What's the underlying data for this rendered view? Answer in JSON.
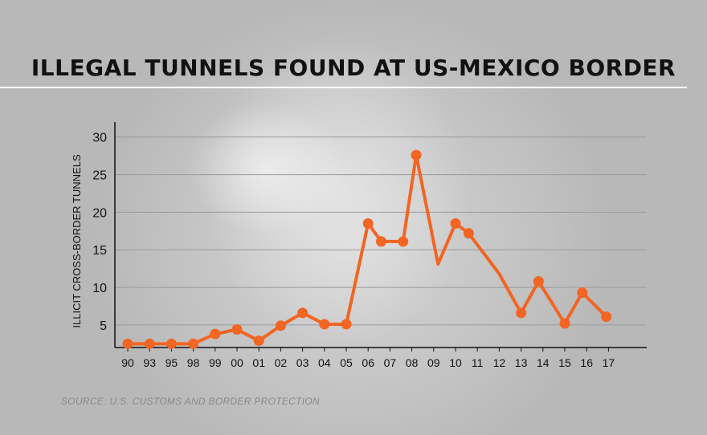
{
  "chart_data": {
    "type": "line",
    "title": "ILLEGAL TUNNELS FOUND AT US-MEXICO BORDER",
    "ylabel": "ILLICIT CROSS-BORDER TUNNELS",
    "source": "SOURCE: U.S. CUSTOMS AND BORDER PROTECTION",
    "ylim": [
      2,
      32
    ],
    "yticks": [
      5,
      10,
      15,
      20,
      25,
      30
    ],
    "grid": true,
    "xticks": [
      "90",
      "93",
      "95",
      "98",
      "99",
      "00",
      "01",
      "02",
      "03",
      "04",
      "05",
      "06",
      "07",
      "08",
      "09",
      "10",
      "11",
      "12",
      "13",
      "14",
      "15",
      "16",
      "17"
    ],
    "line_color": "#f26522",
    "points": [
      {
        "x": 0,
        "y": 2.5,
        "marker": true
      },
      {
        "x": 1,
        "y": 2.5,
        "marker": true
      },
      {
        "x": 2,
        "y": 2.5,
        "marker": true
      },
      {
        "x": 3,
        "y": 2.5,
        "marker": true
      },
      {
        "x": 4,
        "y": 3.8,
        "marker": true
      },
      {
        "x": 5,
        "y": 4.4,
        "marker": true
      },
      {
        "x": 6,
        "y": 2.9,
        "marker": true
      },
      {
        "x": 7,
        "y": 4.9,
        "marker": true
      },
      {
        "x": 8,
        "y": 6.6,
        "marker": true
      },
      {
        "x": 9,
        "y": 5.1,
        "marker": true
      },
      {
        "x": 10,
        "y": 5.1,
        "marker": true
      },
      {
        "x": 11,
        "y": 18.5,
        "marker": true
      },
      {
        "x": 11.6,
        "y": 16.1,
        "marker": true
      },
      {
        "x": 12.6,
        "y": 16.1,
        "marker": true
      },
      {
        "x": 13.2,
        "y": 27.6,
        "marker": true
      },
      {
        "x": 14.2,
        "y": 13.1,
        "marker": false
      },
      {
        "x": 15,
        "y": 18.5,
        "marker": true
      },
      {
        "x": 15.6,
        "y": 17.2,
        "marker": true
      },
      {
        "x": 17,
        "y": 11.8,
        "marker": false
      },
      {
        "x": 18,
        "y": 6.6,
        "marker": true
      },
      {
        "x": 18.8,
        "y": 10.8,
        "marker": true
      },
      {
        "x": 20,
        "y": 5.2,
        "marker": true
      },
      {
        "x": 20.8,
        "y": 9.3,
        "marker": true
      },
      {
        "x": 21.9,
        "y": 6.1,
        "marker": true
      }
    ]
  }
}
